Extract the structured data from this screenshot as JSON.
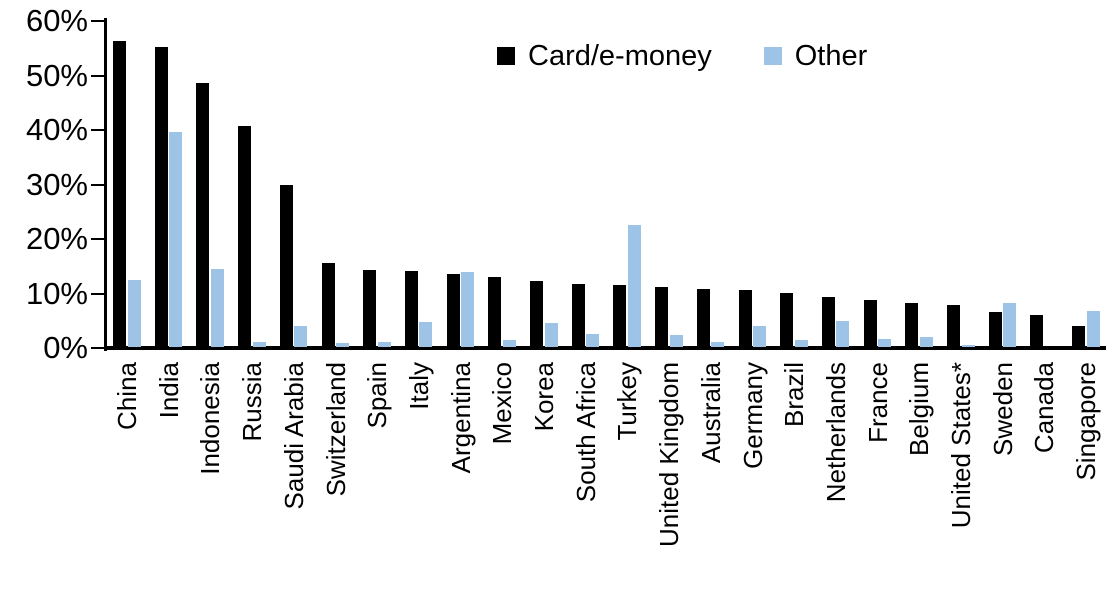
{
  "chart_data": {
    "type": "bar",
    "title": "",
    "xlabel": "",
    "ylabel": "",
    "categories": [
      "China",
      "India",
      "Indonesia",
      "Russia",
      "Saudi Arabia",
      "Switzerland",
      "Spain",
      "Italy",
      "Argentina",
      "Mexico",
      "Korea",
      "South Africa",
      "Turkey",
      "United Kingdom",
      "Australia",
      "Germany",
      "Brazil",
      "Netherlands",
      "France",
      "Belgium",
      "United States*",
      "Sweden",
      "Canada",
      "Singapore"
    ],
    "series": [
      {
        "name": "Card/e-money",
        "color": "#000000",
        "values": [
          56.2,
          55.0,
          48.4,
          40.6,
          29.8,
          15.5,
          14.1,
          14.0,
          13.4,
          12.8,
          12.2,
          11.6,
          11.4,
          11.0,
          10.7,
          10.5,
          10.0,
          9.2,
          8.6,
          8.0,
          7.8,
          6.5,
          5.9,
          3.9
        ]
      },
      {
        "name": "Other",
        "color": "#9DC3E6",
        "values": [
          12.3,
          39.5,
          14.4,
          1.0,
          3.9,
          0.8,
          0.9,
          4.6,
          13.8,
          1.3,
          4.5,
          2.4,
          22.4,
          2.2,
          0.9,
          3.8,
          1.3,
          4.8,
          1.5,
          1.9,
          0.4,
          8.0,
          0.0,
          6.6
        ]
      }
    ],
    "ylim": [
      0,
      60
    ],
    "yticks": [
      0,
      10,
      20,
      30,
      40,
      50,
      60
    ],
    "ytick_labels": [
      "0%",
      "10%",
      "20%",
      "30%",
      "40%",
      "50%",
      "60%"
    ],
    "grid": false,
    "legend_position": "top-center"
  }
}
